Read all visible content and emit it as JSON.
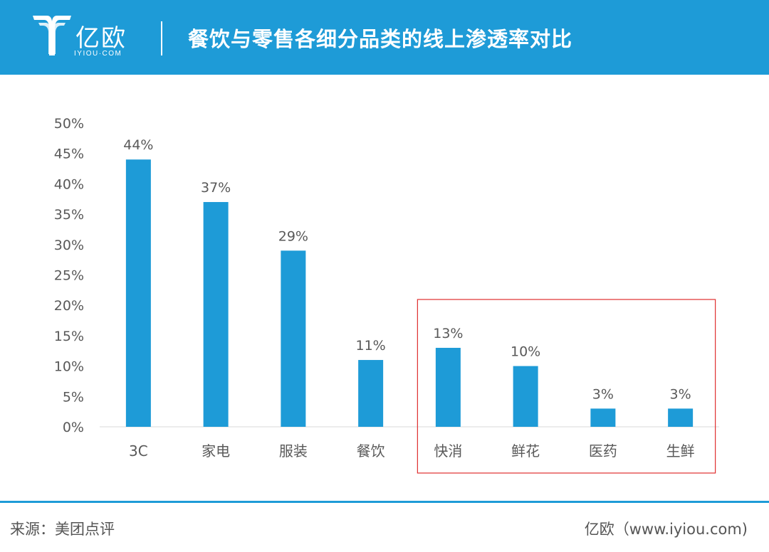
{
  "header": {
    "logo_cn": "亿欧",
    "logo_en": "IYIOU·COM",
    "title": "餐饮与零售各细分品类的线上渗透率对比"
  },
  "colors": {
    "header_bg": "#1e9bd7",
    "bar": "#1e9bd7",
    "highlight_box": "#e03030",
    "text": "#595959"
  },
  "footer": {
    "source": "来源：美团点评",
    "credit": "亿欧（www.iyiou.com)"
  },
  "chart_data": {
    "type": "bar",
    "title": "",
    "xlabel": "",
    "ylabel": "",
    "categories": [
      "3C",
      "家电",
      "服装",
      "餐饮",
      "快消",
      "鲜花",
      "医药",
      "生鲜"
    ],
    "values": [
      44,
      37,
      29,
      11,
      13,
      10,
      3,
      3
    ],
    "data_labels": [
      "44%",
      "37%",
      "29%",
      "11%",
      "13%",
      "10%",
      "3%",
      "3%"
    ],
    "ylim": [
      0,
      50
    ],
    "yticks": [
      "0%",
      "5%",
      "10%",
      "15%",
      "20%",
      "25%",
      "30%",
      "35%",
      "40%",
      "45%",
      "50%"
    ],
    "grid": false,
    "legend": "none",
    "highlighted_categories": [
      "快消",
      "鲜花",
      "医药",
      "生鲜"
    ]
  }
}
